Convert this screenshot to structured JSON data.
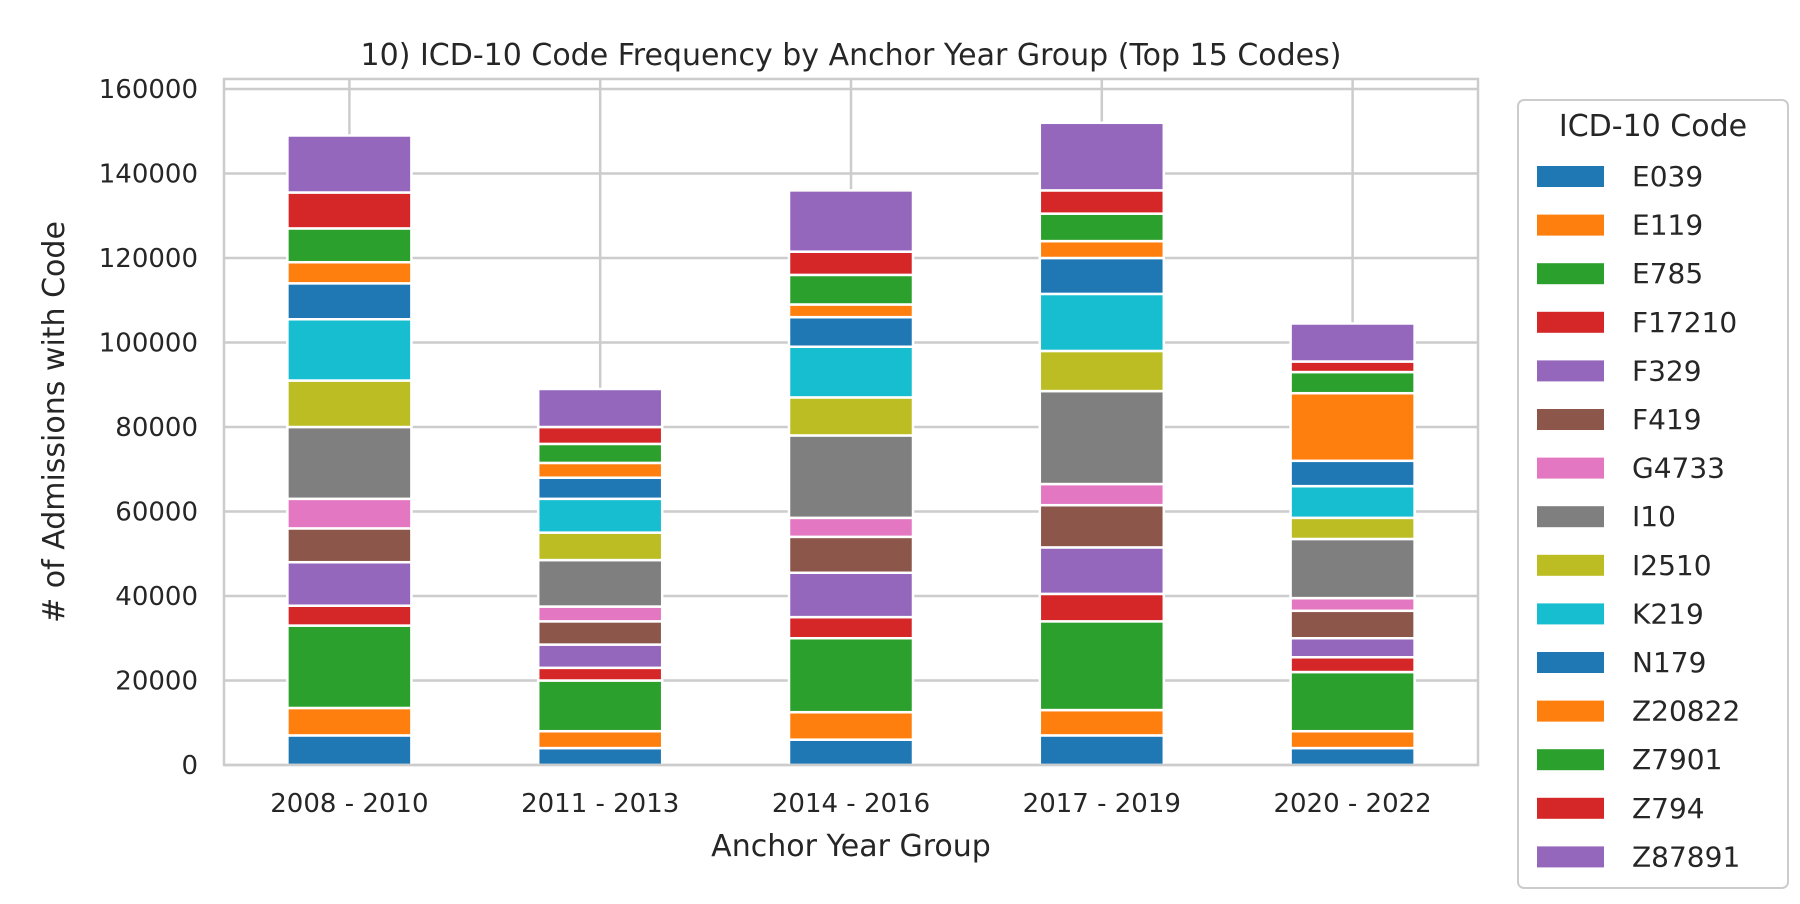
{
  "chart_data": {
    "type": "bar",
    "stacked": true,
    "title": "10) ICD-10 Code Frequency by Anchor Year Group (Top 15 Codes)",
    "xlabel": "Anchor Year Group",
    "ylabel": "# of Admissions with Code",
    "ylim": [
      0,
      160000
    ],
    "yticks": [
      "0",
      "20000",
      "40000",
      "60000",
      "80000",
      "100000",
      "120000",
      "140000",
      "160000"
    ],
    "grid": true,
    "legend": {
      "title": "ICD-10 Code",
      "placement": "right outside"
    },
    "categories": [
      "2008 - 2010",
      "2011 - 2013",
      "2014 - 2016",
      "2017 - 2019",
      "2020 - 2022"
    ],
    "series": [
      {
        "name": "E039",
        "color": "#1f77b4",
        "values": [
          7000,
          4000,
          6000,
          7000,
          4000
        ]
      },
      {
        "name": "E119",
        "color": "#ff7f0e",
        "values": [
          6500,
          4000,
          6500,
          6000,
          4000
        ]
      },
      {
        "name": "E785",
        "color": "#2ca02c",
        "values": [
          19500,
          12000,
          17500,
          21000,
          14000
        ]
      },
      {
        "name": "F17210",
        "color": "#d62728",
        "values": [
          4700,
          3000,
          5000,
          6500,
          3500
        ]
      },
      {
        "name": "F329",
        "color": "#9467bd",
        "values": [
          10300,
          5500,
          10500,
          11000,
          4500
        ]
      },
      {
        "name": "F419",
        "color": "#8c564b",
        "values": [
          8000,
          5500,
          8500,
          10000,
          6500
        ]
      },
      {
        "name": "G4733",
        "color": "#e377c2",
        "values": [
          7000,
          3500,
          4500,
          5000,
          3000
        ]
      },
      {
        "name": "I10",
        "color": "#7f7f7f",
        "values": [
          17000,
          11000,
          19500,
          22000,
          14000
        ]
      },
      {
        "name": "I2510",
        "color": "#bcbd22",
        "values": [
          11000,
          6500,
          9000,
          9500,
          5000
        ]
      },
      {
        "name": "K219",
        "color": "#17becf",
        "values": [
          14500,
          8000,
          12000,
          13500,
          7500
        ]
      },
      {
        "name": "N179",
        "color": "#1f77b4",
        "values": [
          8500,
          5000,
          7000,
          8500,
          6000
        ]
      },
      {
        "name": "Z20822",
        "color": "#ff7f0e",
        "values": [
          5000,
          3500,
          3000,
          4000,
          16000
        ]
      },
      {
        "name": "Z7901",
        "color": "#2ca02c",
        "values": [
          8000,
          4500,
          7000,
          6500,
          5000
        ]
      },
      {
        "name": "Z794",
        "color": "#d62728",
        "values": [
          8500,
          4000,
          5500,
          5500,
          2500
        ]
      },
      {
        "name": "Z87891",
        "color": "#9467bd",
        "values": [
          13500,
          9000,
          14500,
          16000,
          9000
        ]
      }
    ]
  }
}
